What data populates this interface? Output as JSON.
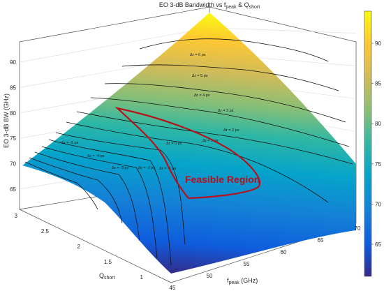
{
  "chart_data": {
    "type": "surface",
    "title_main": "EO 3-dB Bandwidth vs f",
    "title_sub1": "peak",
    "title_mid": " & Q",
    "title_sub2": "short",
    "xlabel_main": "f",
    "xlabel_sub": "peak",
    "xlabel_unit": " (GHz)",
    "ylabel_main": "Q",
    "ylabel_sub": "short",
    "zlabel": "EO 3-dB BW (GHz)",
    "x_ticks": [
      "45",
      "50",
      "55",
      "60",
      "65",
      "70"
    ],
    "y_ticks": [
      "1",
      "1.5",
      "2",
      "2.5",
      "3"
    ],
    "z_ticks": [
      "65",
      "70",
      "75",
      "80",
      "85",
      "90"
    ],
    "xlim": [
      45,
      70
    ],
    "ylim": [
      1,
      3
    ],
    "zlim": [
      61,
      94
    ],
    "colorbar_ticks": [
      "65",
      "70",
      "75",
      "80",
      "85",
      "90"
    ],
    "colorbar_range": [
      61,
      94
    ],
    "colormap": "parula",
    "corner_values": [
      {
        "f_peak": 45,
        "Q_short": 3,
        "bw": 71
      },
      {
        "f_peak": 70,
        "Q_short": 3,
        "bw": 94
      },
      {
        "f_peak": 45,
        "Q_short": 1,
        "bw": 61
      },
      {
        "f_peak": 70,
        "Q_short": 1,
        "bw": 69
      }
    ],
    "contour_labels": [
      "Δτ = 6 ps",
      "Δτ = 5 ps",
      "Δτ = 4 ps",
      "Δτ = 3 ps",
      "Δτ = 2 ps",
      "Δτ = 1 ps",
      "Δτ = 0 ps",
      "Δτ = -1 ps",
      "Δτ = -2 ps",
      "Δτ = -3 ps",
      "Δτ = -4 ps",
      "Δτ = -5 ps"
    ],
    "annotation": "Feasible Region",
    "annotation_color": "#b5121b",
    "grid": true
  }
}
